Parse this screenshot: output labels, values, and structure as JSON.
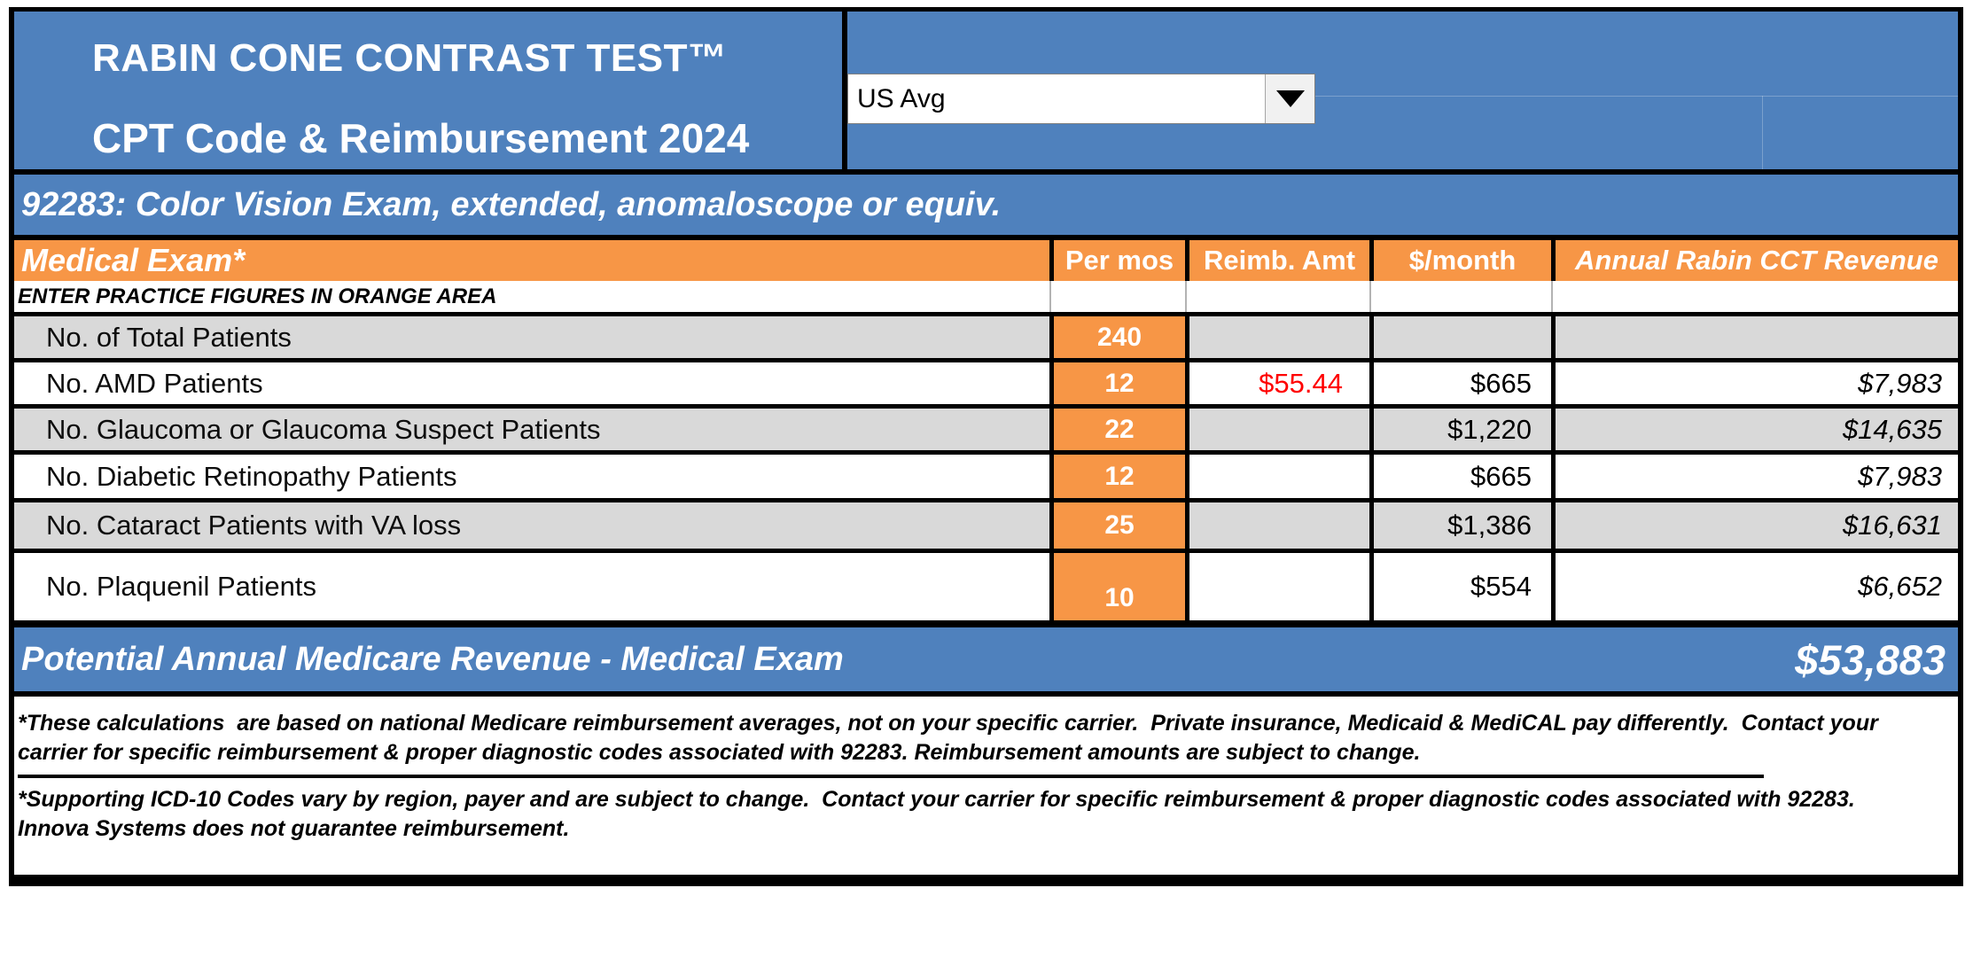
{
  "colors": {
    "header_blue": "#4F81BD",
    "accent_orange": "#F79646",
    "row_gray": "#D9D9D9",
    "reimb_red": "#FF0000",
    "border_black": "#000000"
  },
  "header": {
    "title_line1": "RABIN CONE CONTRAST TEST™",
    "title_line2": "CPT Code & Reimbursement 2024",
    "region_selector": {
      "value": "US Avg"
    }
  },
  "subheader": {
    "cpt_line": "92283: Color Vision Exam, extended, anomaloscope or equiv."
  },
  "table": {
    "section_title": "Medical Exam*",
    "columns": {
      "per_mos": "Per mos",
      "reimb_amt": "Reimb. Amt",
      "per_month": "$/month",
      "annual": "Annual Rabin CCT Revenue"
    },
    "instruction": "ENTER PRACTICE FIGURES IN ORANGE AREA",
    "rows": [
      {
        "label": "No. of Total Patients",
        "per_mos": "240",
        "reimb_amt": "",
        "per_month": "",
        "annual": ""
      },
      {
        "label": "No. AMD Patients",
        "per_mos": "12",
        "reimb_amt": "$55.44",
        "per_month": "$665",
        "annual": "$7,983"
      },
      {
        "label": "No. Glaucoma or Glaucoma Suspect Patients",
        "per_mos": "22",
        "reimb_amt": "",
        "per_month": "$1,220",
        "annual": "$14,635"
      },
      {
        "label": "No. Diabetic Retinopathy Patients",
        "per_mos": "12",
        "reimb_amt": "",
        "per_month": "$665",
        "annual": "$7,983"
      },
      {
        "label": "No. Cataract Patients with VA loss",
        "per_mos": "25",
        "reimb_amt": "",
        "per_month": "$1,386",
        "annual": "$16,631"
      },
      {
        "label": "No. Plaquenil Patients",
        "per_mos": "10",
        "reimb_amt": "",
        "per_month": "$554",
        "annual": "$6,652"
      }
    ]
  },
  "summary": {
    "label": "Potential Annual Medicare Revenue - Medical Exam",
    "value": "$53,883"
  },
  "footnotes": {
    "note1_line1": "*These calculations  are based on national Medicare reimbursement averages, not on your specific carrier.  Private insurance, Medicaid & MediCAL pay differently.  Contact your",
    "note1_line2": "carrier for specific reimbursement & proper diagnostic codes associated with 92283. Reimbursement amounts are subject to change.",
    "note2_line1": "*Supporting ICD-10 Codes vary by region, payer and are subject to change.  Contact your carrier for specific reimbursement & proper diagnostic codes associated with 92283.",
    "note2_line2": "Innova Systems does not guarantee reimbursement."
  }
}
